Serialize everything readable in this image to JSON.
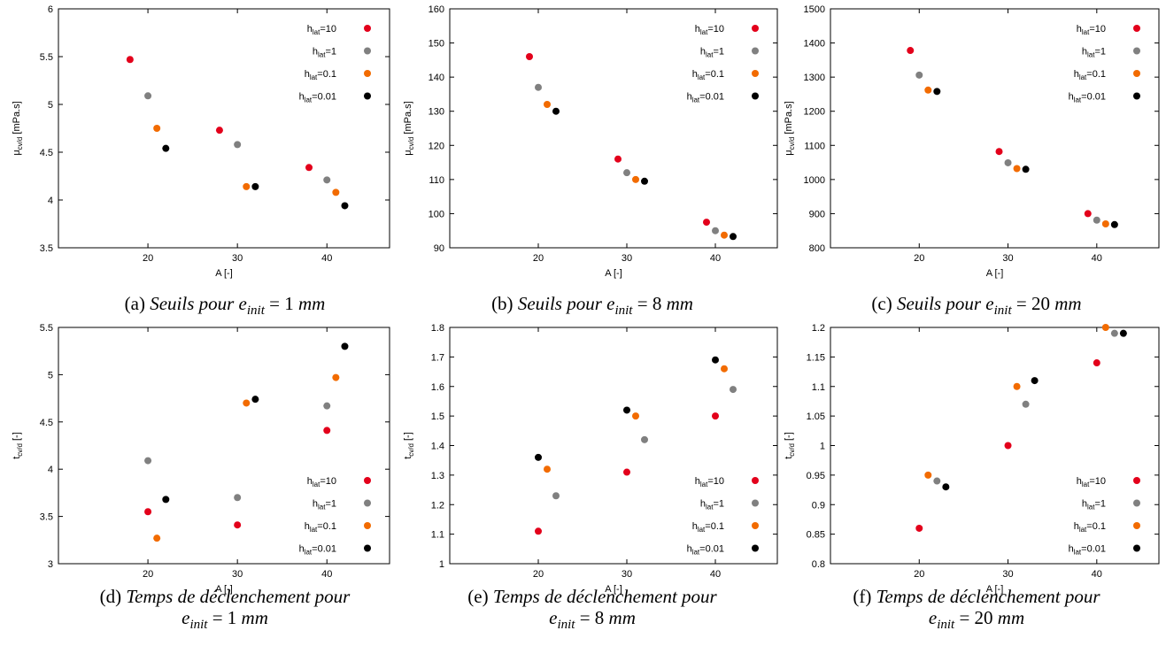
{
  "colors": {
    "h10": "#e3001b",
    "h1": "#808080",
    "h01": "#f26b00",
    "h001": "#000000"
  },
  "chart_data": [
    {
      "type": "scatter",
      "xlabel": "A [-]",
      "ylabel": "μcv/d [mPa.s]",
      "xlim": [
        10,
        47
      ],
      "ylim": [
        3.5,
        6
      ],
      "xticks": [
        20,
        30,
        40
      ],
      "yticks": [
        3.5,
        4,
        4.5,
        5,
        5.5,
        6
      ],
      "ytick_labels": [
        "3.5",
        "4",
        "4.5",
        "5",
        "5.5",
        "6"
      ],
      "legend_position": "top-right",
      "series": [
        {
          "name": "hlat=10",
          "color": "#e3001b",
          "x": [
            18,
            28,
            38
          ],
          "y": [
            5.47,
            4.73,
            4.34
          ]
        },
        {
          "name": "hlat=1",
          "color": "#808080",
          "x": [
            20,
            30,
            40
          ],
          "y": [
            5.09,
            4.58,
            4.21
          ]
        },
        {
          "name": "hlat=0.1",
          "color": "#f26b00",
          "x": [
            21,
            31,
            41
          ],
          "y": [
            4.75,
            4.14,
            4.08
          ]
        },
        {
          "name": "hlat=0.01",
          "color": "#000000",
          "x": [
            22,
            32,
            42
          ],
          "y": [
            4.54,
            4.14,
            3.94
          ]
        }
      ],
      "caption": "(a) Seuils pour e_init = 1 mm"
    },
    {
      "type": "scatter",
      "xlabel": "A [-]",
      "ylabel": "μcv/d [mPa.s]",
      "xlim": [
        10,
        47
      ],
      "ylim": [
        90,
        160
      ],
      "xticks": [
        20,
        30,
        40
      ],
      "yticks": [
        90,
        100,
        110,
        120,
        130,
        140,
        150,
        160
      ],
      "ytick_labels": [
        "90",
        "100",
        "110",
        "120",
        "130",
        "140",
        "150",
        "160"
      ],
      "legend_position": "top-right",
      "series": [
        {
          "name": "hlat=10",
          "color": "#e3001b",
          "x": [
            19,
            29,
            39
          ],
          "y": [
            146,
            116,
            97.5
          ]
        },
        {
          "name": "hlat=1",
          "color": "#808080",
          "x": [
            20,
            30,
            40
          ],
          "y": [
            137,
            112,
            95
          ]
        },
        {
          "name": "hlat=0.1",
          "color": "#f26b00",
          "x": [
            21,
            31,
            41
          ],
          "y": [
            132,
            110,
            93.7
          ]
        },
        {
          "name": "hlat=0.01",
          "color": "#000000",
          "x": [
            22,
            32,
            42
          ],
          "y": [
            130,
            109.5,
            93.3
          ]
        }
      ],
      "caption": "(b) Seuils pour e_init = 8 mm"
    },
    {
      "type": "scatter",
      "xlabel": "A [-]",
      "ylabel": "μcv/d [mPa.s]",
      "xlim": [
        10,
        47
      ],
      "ylim": [
        800,
        1500
      ],
      "xticks": [
        20,
        30,
        40
      ],
      "yticks": [
        800,
        900,
        1000,
        1100,
        1200,
        1300,
        1400,
        1500
      ],
      "ytick_labels": [
        "800",
        "900",
        "1000",
        "1100",
        "1200",
        "1300",
        "1400",
        "1500"
      ],
      "legend_position": "top-right",
      "series": [
        {
          "name": "hlat=10",
          "color": "#e3001b",
          "x": [
            19,
            29,
            39
          ],
          "y": [
            1378,
            1082,
            900
          ]
        },
        {
          "name": "hlat=1",
          "color": "#808080",
          "x": [
            20,
            30,
            40
          ],
          "y": [
            1306,
            1049,
            881
          ]
        },
        {
          "name": "hlat=0.1",
          "color": "#f26b00",
          "x": [
            21,
            31,
            41
          ],
          "y": [
            1262,
            1032,
            870
          ]
        },
        {
          "name": "hlat=0.01",
          "color": "#000000",
          "x": [
            22,
            32,
            42
          ],
          "y": [
            1258,
            1030,
            868
          ]
        }
      ],
      "caption": "(c) Seuils pour e_init = 20 mm"
    },
    {
      "type": "scatter",
      "xlabel": "A [-]",
      "ylabel": "tcv/d [-]",
      "xlim": [
        10,
        47
      ],
      "ylim": [
        3,
        5.5
      ],
      "xticks": [
        20,
        30,
        40
      ],
      "yticks": [
        3,
        3.5,
        4,
        4.5,
        5,
        5.5
      ],
      "ytick_labels": [
        "3",
        "3.5",
        "4",
        "4.5",
        "5",
        "5.5"
      ],
      "legend_position": "bottom-right",
      "series": [
        {
          "name": "hlat=10",
          "color": "#e3001b",
          "x": [
            20,
            30,
            40
          ],
          "y": [
            3.55,
            3.41,
            4.41
          ]
        },
        {
          "name": "hlat=1",
          "color": "#808080",
          "x": [
            20,
            30,
            40
          ],
          "y": [
            4.09,
            3.7,
            4.67
          ]
        },
        {
          "name": "hlat=0.1",
          "color": "#f26b00",
          "x": [
            21,
            31,
            41
          ],
          "y": [
            3.27,
            4.7,
            4.97
          ]
        },
        {
          "name": "hlat=0.01",
          "color": "#000000",
          "x": [
            22,
            32,
            42
          ],
          "y": [
            3.68,
            4.74,
            5.3
          ]
        }
      ],
      "caption": "(d) Temps de déclenchement pour e_init = 1 mm"
    },
    {
      "type": "scatter",
      "xlabel": "A [-]",
      "ylabel": "tcv/d [-]",
      "xlim": [
        10,
        47
      ],
      "ylim": [
        1,
        1.8
      ],
      "xticks": [
        20,
        30,
        40
      ],
      "yticks": [
        1,
        1.1,
        1.2,
        1.3,
        1.4,
        1.5,
        1.6,
        1.7,
        1.8
      ],
      "ytick_labels": [
        "1",
        "1.1",
        "1.2",
        "1.3",
        "1.4",
        "1.5",
        "1.6",
        "1.7",
        "1.8"
      ],
      "legend_position": "bottom-right",
      "series": [
        {
          "name": "hlat=10",
          "color": "#e3001b",
          "x": [
            20,
            30,
            40
          ],
          "y": [
            1.11,
            1.31,
            1.5
          ]
        },
        {
          "name": "hlat=1",
          "color": "#808080",
          "x": [
            22,
            32,
            42
          ],
          "y": [
            1.23,
            1.42,
            1.59
          ]
        },
        {
          "name": "hlat=0.1",
          "color": "#f26b00",
          "x": [
            21,
            31,
            41
          ],
          "y": [
            1.32,
            1.5,
            1.66
          ]
        },
        {
          "name": "hlat=0.01",
          "color": "#000000",
          "x": [
            20,
            30,
            40
          ],
          "y": [
            1.36,
            1.52,
            1.69
          ]
        }
      ],
      "caption": "(e) Temps de déclenchement pour e_init = 8 mm"
    },
    {
      "type": "scatter",
      "xlabel": "A [-]",
      "ylabel": "tcv/d [-]",
      "xlim": [
        10,
        47
      ],
      "ylim": [
        0.8,
        1.2
      ],
      "xticks": [
        20,
        30,
        40
      ],
      "yticks": [
        0.8,
        0.85,
        0.9,
        0.95,
        1,
        1.05,
        1.1,
        1.15,
        1.2
      ],
      "ytick_labels": [
        "0.8",
        "0.85",
        "0.9",
        "0.95",
        "1",
        "1.05",
        "1.1",
        "1.15",
        "1.2"
      ],
      "legend_position": "bottom-right",
      "series": [
        {
          "name": "hlat=10",
          "color": "#e3001b",
          "x": [
            20,
            30,
            40
          ],
          "y": [
            0.86,
            1.0,
            1.14
          ]
        },
        {
          "name": "hlat=1",
          "color": "#808080",
          "x": [
            22,
            32,
            42
          ],
          "y": [
            0.94,
            1.07,
            1.19
          ]
        },
        {
          "name": "hlat=0.1",
          "color": "#f26b00",
          "x": [
            21,
            31,
            41
          ],
          "y": [
            0.95,
            1.1,
            1.2
          ]
        },
        {
          "name": "hlat=0.01",
          "color": "#000000",
          "x": [
            23,
            33,
            43
          ],
          "y": [
            0.93,
            1.11,
            1.19
          ]
        }
      ],
      "caption": "(f) Temps de déclenchement pour e_init = 20 mm"
    }
  ]
}
